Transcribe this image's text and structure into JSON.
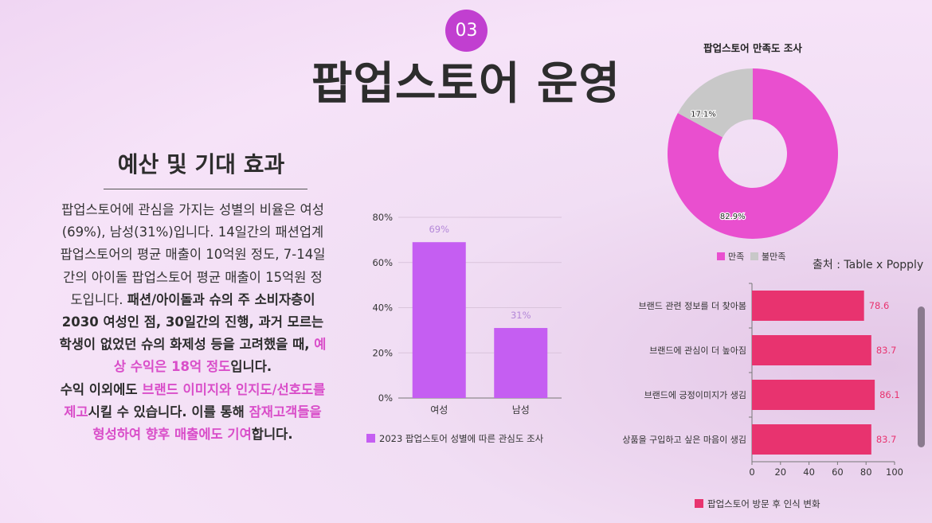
{
  "slide": {
    "number": "03",
    "title": "팝업스토어 운영",
    "subtitle": "예산 및 기대 효과",
    "source": "출처 : Table x Popply",
    "body": {
      "p1": "팝업스토어에 관심을 가지는 성별의 비율은 여성(69%), 남성(31%)입니다. 14일간의 패션업계 팝업스토어의 평균 매출이 10억원 정도, 7-14일간의 아이돌 팝업스토어 평균 매출이 15억원 정도입니다. ",
      "p2": "패션/아이돌과 슈의 주 소비자층이 2030 여성인 점, 30일간의 진행, 과거 모르는 학생이 없었던 슈의 화제성 등을 고려했을 때, ",
      "hl1": "예상 수익은 18억 정도",
      "p3": "입니다.",
      "p4": "수익 이외에도 ",
      "hl2": "브랜드 이미지와 인지도/선호도를 제고",
      "p5": "시킬 수 있습니다. 이를 통해 ",
      "hl3": "잠재고객들을 형성하여 향후 매출에도 기여",
      "p6": "합니다."
    }
  },
  "colors": {
    "purple": "#c55ef2",
    "pink": "#e94fcf",
    "gray": "#c8c8c8",
    "rose": "#e8336f",
    "accent": "#c13fd0"
  },
  "chart_data": [
    {
      "type": "pie",
      "title": "팝업스토어 만족도 조사",
      "labels": [
        "만족",
        "불만족"
      ],
      "values": [
        82.9,
        17.1
      ],
      "value_labels": [
        "82.9%",
        "17.1%"
      ],
      "legend": "bottom"
    },
    {
      "type": "bar",
      "categories": [
        "여성",
        "남성"
      ],
      "values": [
        69,
        31
      ],
      "value_labels": [
        "69%",
        "31%"
      ],
      "ylim": [
        0,
        80
      ],
      "yticks": [
        "0%",
        "20%",
        "40%",
        "60%",
        "80%"
      ],
      "series": [
        {
          "name": "2023 팝업스토어 성별에 따른 관심도 조사",
          "values": [
            69,
            31
          ]
        }
      ],
      "legend": "bottom"
    },
    {
      "type": "bar",
      "orientation": "horizontal",
      "categories": [
        "브랜드 관련 정보를 더 찾아봄",
        "브랜드에 관심이 더 높아짐",
        "브랜드에 긍정이미지가 생김",
        "상품을 구입하고 싶은 마음이 생김"
      ],
      "values": [
        78.6,
        83.7,
        86.1,
        83.7
      ],
      "value_labels": [
        "78.6",
        "83.7",
        "86.1",
        "83.7"
      ],
      "xlim": [
        0,
        100
      ],
      "xticks": [
        "0",
        "20",
        "40",
        "60",
        "80",
        "100"
      ],
      "series": [
        {
          "name": "팝업스토어 방문 후 인식 변화",
          "values": [
            78.6,
            83.7,
            86.1,
            83.7
          ]
        }
      ],
      "legend": "bottom"
    }
  ]
}
